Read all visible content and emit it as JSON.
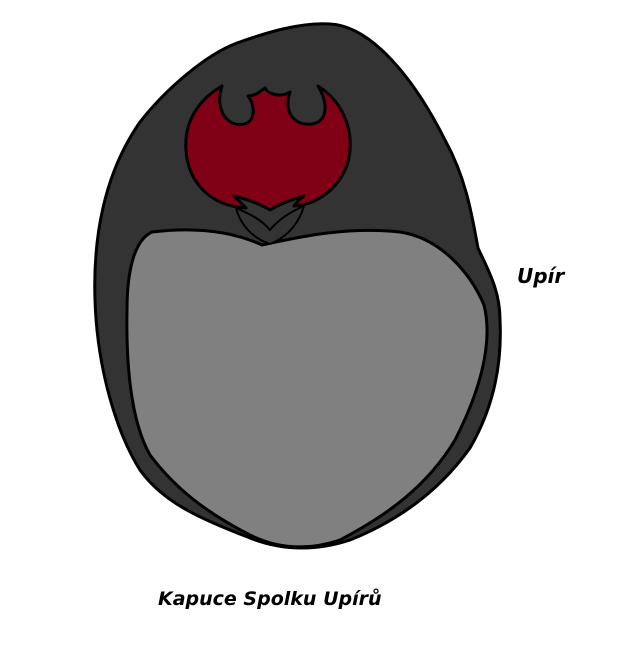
{
  "labels": {
    "side": "Upír",
    "caption": "Kapuce Spolku Upírů"
  },
  "colors": {
    "background": "#ffffff",
    "hood": "#333333",
    "face": "#808080",
    "emblem": "#800015",
    "outline": "#000000"
  },
  "emblem_icon": "bat-emblem"
}
